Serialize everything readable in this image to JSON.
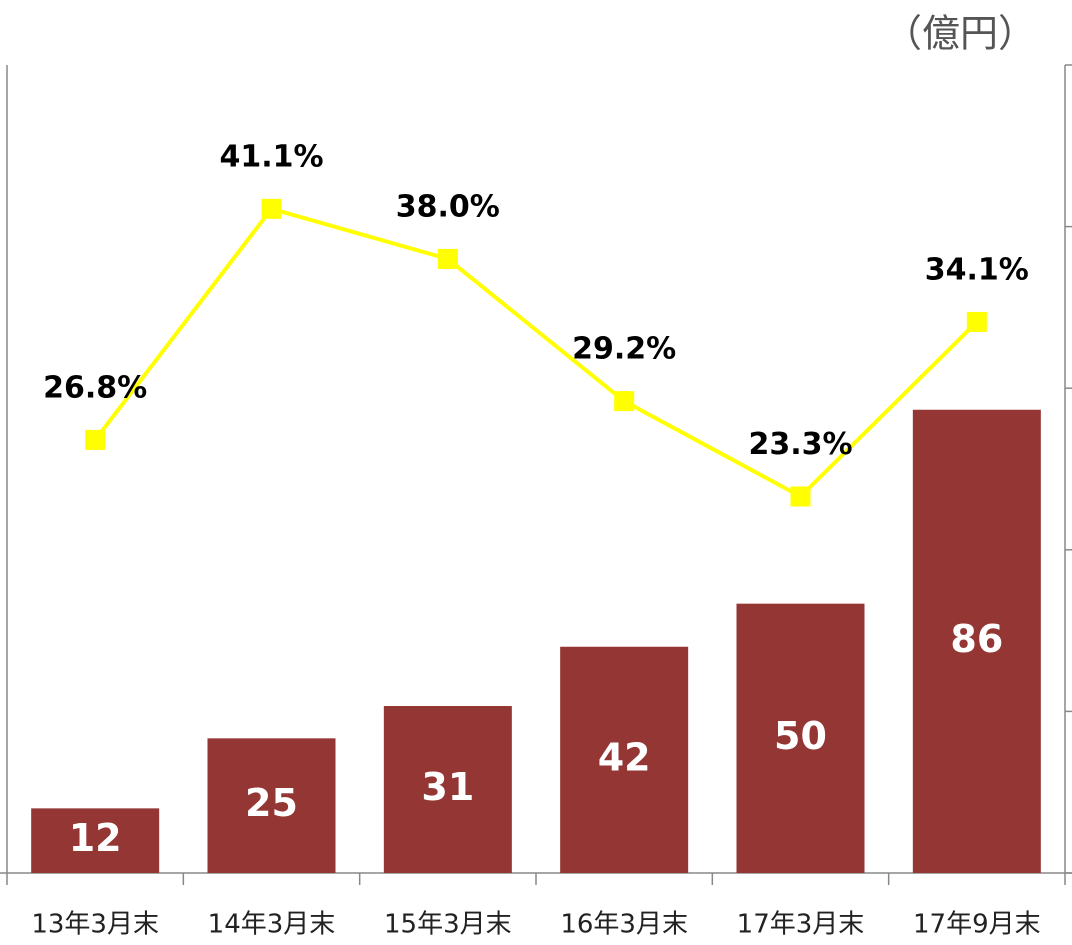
{
  "chart_data": {
    "type": "bar+line",
    "y_label": "（億円）",
    "categories": [
      "13年3月末",
      "14年3月末",
      "15年3月末",
      "16年3月末",
      "17年3月末",
      "17年9月末"
    ],
    "series": [
      {
        "type": "bar",
        "color": "#943634",
        "values": [
          12,
          25,
          31,
          42,
          50,
          86
        ]
      },
      {
        "type": "line",
        "axis": "y2",
        "color": "#ffff00",
        "values": [
          26.8,
          41.1,
          38.0,
          29.2,
          23.3,
          34.1
        ],
        "value_labels": [
          "26.8%",
          "41.1%",
          "38.0%",
          "29.2%",
          "23.3%",
          "34.1%"
        ]
      }
    ],
    "ylim": [
      0,
      150
    ],
    "y2lim": [
      0,
      50
    ],
    "y2ticks": [
      0,
      10,
      20,
      30,
      40,
      50
    ]
  }
}
